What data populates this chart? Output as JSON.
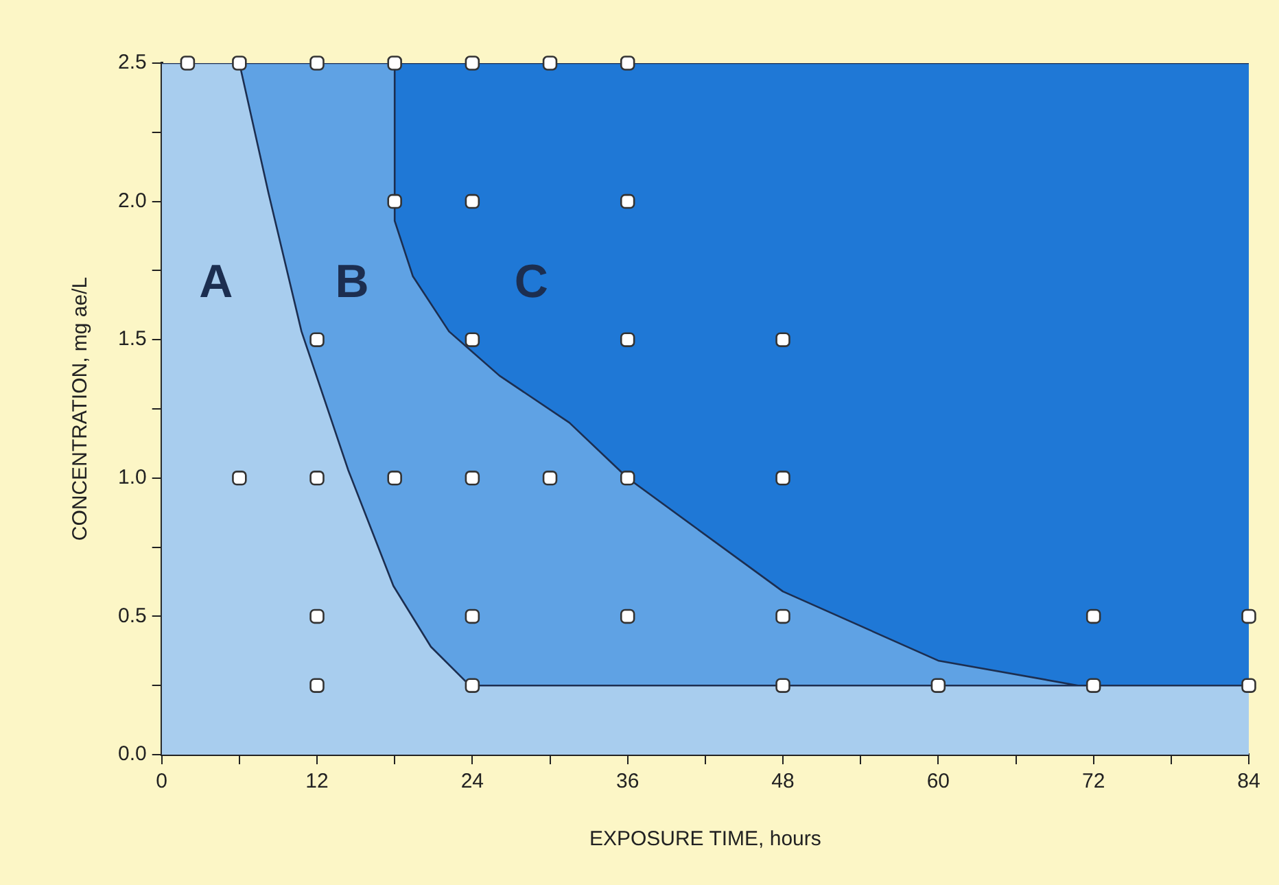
{
  "chart_data": {
    "type": "area",
    "xlabel": "EXPOSURE TIME, hours",
    "ylabel": "CONCENTRATION, mg ae/L",
    "xlim": [
      0,
      84
    ],
    "xticks": [
      0,
      {
        "value": 6,
        "label": null
      },
      12,
      {
        "value": 18,
        "label": null
      },
      24,
      {
        "value": 30,
        "label": null
      },
      36,
      {
        "value": 42,
        "label": null
      },
      48,
      {
        "value": 54,
        "label": null
      },
      60,
      {
        "value": 66,
        "label": null
      },
      72,
      {
        "value": 78,
        "label": null
      },
      84
    ],
    "ylim": [
      0,
      2.5
    ],
    "yticks": [
      {
        "value": 0,
        "label": "0.0"
      },
      {
        "value": 0.25,
        "label": null
      },
      {
        "value": 0.5,
        "label": "0.5"
      },
      {
        "value": 0.75,
        "label": null
      },
      {
        "value": 1,
        "label": "1.0"
      },
      {
        "value": 1.25,
        "label": null
      },
      {
        "value": 1.5,
        "label": "1.5"
      },
      {
        "value": 1.75,
        "label": null
      },
      {
        "value": 2,
        "label": "2.0"
      },
      {
        "value": 2.25,
        "label": null
      },
      {
        "value": 2.5,
        "label": "2.5"
      }
    ],
    "grid": false,
    "legend": false,
    "series": [
      {
        "color": "#1f78d6",
        "x": [
          18,
          84
        ],
        "values": [
          2.5,
          2.5
        ]
      },
      {
        "color": "#5fa2e4",
        "x": [
          6,
          18,
          18,
          19.4,
          22.2,
          26.1,
          31.5,
          36,
          48,
          60,
          70.8,
          84
        ],
        "values": [
          2.5,
          2.5,
          1.93,
          1.73,
          1.53,
          1.37,
          1.2,
          1.0,
          0.59,
          0.34,
          0.25,
          0.25
        ]
      },
      {
        "color": "#a8cdee",
        "x": [
          0,
          6,
          8.25,
          10.8,
          14.4,
          17.9,
          20.8,
          23.8,
          84
        ],
        "values": [
          2.5,
          2.5,
          2.03,
          1.53,
          1.03,
          0.61,
          0.39,
          0.25,
          0.25
        ]
      },
      {
        "type": "scatter",
        "marker": "square",
        "color": "#ffffff",
        "x": [
          2,
          6,
          12,
          18,
          24,
          30,
          36,
          18,
          24,
          36,
          12,
          24,
          36,
          48,
          6,
          12,
          18,
          24,
          30,
          36,
          48,
          12,
          24,
          36,
          48,
          72,
          84,
          12,
          24,
          48,
          60,
          72,
          84
        ],
        "values": [
          2.5,
          2.5,
          2.5,
          2.5,
          2.5,
          2.5,
          2.5,
          2,
          2,
          2,
          1.5,
          1.5,
          1.5,
          1.5,
          1,
          1,
          1,
          1,
          1,
          1,
          1,
          0.5,
          0.5,
          0.5,
          0.5,
          0.5,
          0.5,
          0.25,
          0.25,
          0.25,
          0.25,
          0.25,
          0.25
        ]
      }
    ],
    "annotations": [
      "A",
      "B",
      "C"
    ]
  }
}
